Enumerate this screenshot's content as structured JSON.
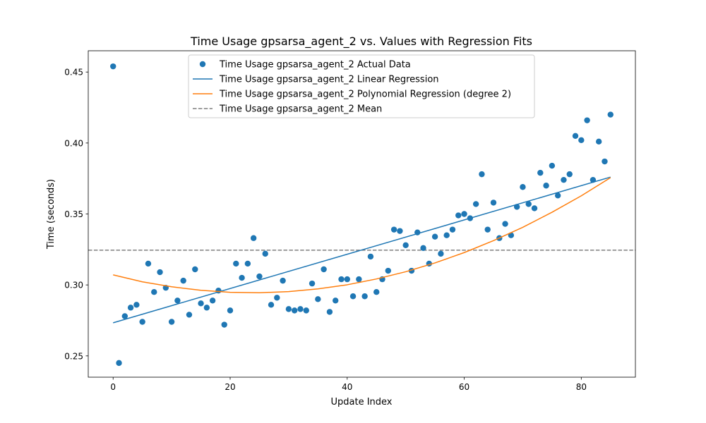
{
  "chart_data": {
    "type": "scatter",
    "title": "Time Usage gpsarsa_agent_2 vs. Values with Regression Fits",
    "xlabel": "Update Index",
    "ylabel": "Time (seconds)",
    "xlim": [
      -4.25,
      89.25
    ],
    "ylim": [
      0.235,
      0.465
    ],
    "xticks": [
      0,
      20,
      40,
      60,
      80
    ],
    "yticks": [
      0.25,
      0.3,
      0.35,
      0.4,
      0.45
    ],
    "grid": false,
    "legend_position": "upper center",
    "colors": {
      "actual": "#1f77b4",
      "linear": "#1f77b4",
      "poly": "#ff7f0e",
      "mean": "#7f7f7f"
    },
    "series": [
      {
        "name": "Time Usage gpsarsa_agent_2 Actual Data",
        "kind": "scatter",
        "x": [
          0,
          1,
          2,
          3,
          4,
          5,
          6,
          7,
          8,
          9,
          10,
          11,
          12,
          13,
          14,
          15,
          16,
          17,
          18,
          19,
          20,
          21,
          22,
          23,
          24,
          25,
          26,
          27,
          28,
          29,
          30,
          31,
          32,
          33,
          34,
          35,
          36,
          37,
          38,
          39,
          40,
          41,
          42,
          43,
          44,
          45,
          46,
          47,
          48,
          49,
          50,
          51,
          52,
          53,
          54,
          55,
          56,
          57,
          58,
          59,
          60,
          61,
          62,
          63,
          64,
          65,
          66,
          67,
          68,
          69,
          70,
          71,
          72,
          73,
          74,
          75,
          76,
          77,
          78,
          79,
          80,
          81,
          82,
          83,
          84,
          85
        ],
        "y": [
          0.454,
          0.245,
          0.278,
          0.284,
          0.286,
          0.274,
          0.315,
          0.295,
          0.309,
          0.298,
          0.274,
          0.289,
          0.303,
          0.279,
          0.311,
          0.287,
          0.284,
          0.289,
          0.296,
          0.272,
          0.282,
          0.315,
          0.305,
          0.315,
          0.333,
          0.306,
          0.322,
          0.286,
          0.291,
          0.303,
          0.283,
          0.282,
          0.283,
          0.282,
          0.301,
          0.29,
          0.311,
          0.281,
          0.289,
          0.304,
          0.304,
          0.292,
          0.304,
          0.292,
          0.32,
          0.295,
          0.304,
          0.31,
          0.339,
          0.338,
          0.328,
          0.31,
          0.337,
          0.326,
          0.315,
          0.334,
          0.322,
          0.335,
          0.339,
          0.349,
          0.35,
          0.347,
          0.357,
          0.378,
          0.339,
          0.358,
          0.333,
          0.343,
          0.335,
          0.355,
          0.369,
          0.357,
          0.354,
          0.379,
          0.37,
          0.384,
          0.363,
          0.374,
          0.378,
          0.405,
          0.402,
          0.416,
          0.374,
          0.401,
          0.387,
          0.42
        ]
      },
      {
        "name": "Time Usage gpsarsa_agent_2 Linear Regression",
        "kind": "line",
        "x": [
          0,
          85
        ],
        "y": [
          0.2733,
          0.376
        ]
      },
      {
        "name": "Time Usage gpsarsa_agent_2 Polynomial Regression (degree 2)",
        "kind": "line",
        "x": [
          0,
          5,
          10,
          15,
          20,
          25,
          30,
          35,
          40,
          45,
          50,
          55,
          60,
          65,
          70,
          75,
          80,
          85
        ],
        "y": [
          0.3071,
          0.3022,
          0.2987,
          0.2962,
          0.2948,
          0.2945,
          0.2953,
          0.2972,
          0.3001,
          0.3042,
          0.3093,
          0.3155,
          0.3228,
          0.3312,
          0.3406,
          0.3512,
          0.3628,
          0.3756
        ]
      },
      {
        "name": "Time Usage gpsarsa_agent_2 Mean",
        "kind": "hline",
        "y": 0.3245
      }
    ]
  }
}
